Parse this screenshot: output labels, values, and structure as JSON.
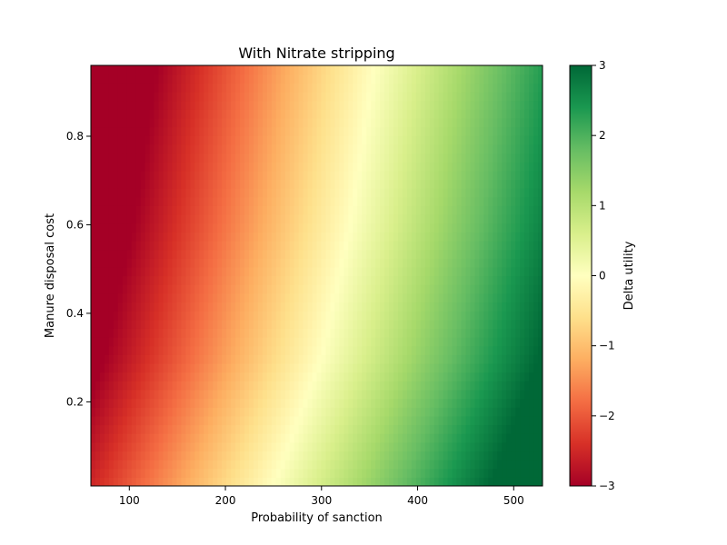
{
  "chart_data": {
    "type": "heatmap",
    "title": "With Nitrate stripping",
    "xlabel": "Probability of sanction",
    "ylabel": "Manure disposal cost",
    "xlim": [
      60,
      530
    ],
    "ylim": [
      0.01,
      0.96
    ],
    "x_ticks": [
      100,
      200,
      300,
      400,
      500
    ],
    "y_ticks": [
      0.2,
      0.4,
      0.6,
      0.8
    ],
    "x_tick_labels": [
      "100",
      "200",
      "300",
      "400",
      "500"
    ],
    "y_tick_labels": [
      "0.2",
      "0.4",
      "0.6",
      "0.8"
    ],
    "colormap": "RdYlGn",
    "colorbar": {
      "label": "Delta utility",
      "range": [
        -3,
        3
      ],
      "ticks": [
        -3,
        -2,
        -1,
        0,
        1,
        2,
        3
      ],
      "tick_labels": [
        "−3",
        "−2",
        "−1",
        "0",
        "1",
        "2",
        "3"
      ]
    },
    "samples": [
      {
        "x": 60,
        "y": 0.96,
        "value": -2.6
      },
      {
        "x": 60,
        "y": 0.01,
        "value": -1.6
      },
      {
        "x": 530,
        "y": 0.96,
        "value": 1.7
      },
      {
        "x": 530,
        "y": 0.01,
        "value": 2.6
      }
    ],
    "zero_contour": [
      {
        "x": 250,
        "y": 0.01
      },
      {
        "x": 300,
        "y": 0.3
      },
      {
        "x": 330,
        "y": 0.6
      },
      {
        "x": 355,
        "y": 0.96
      }
    ]
  }
}
